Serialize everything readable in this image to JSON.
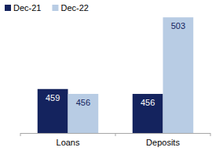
{
  "chart_data": {
    "type": "bar",
    "categories": [
      "Loans",
      "Deposits"
    ],
    "series": [
      {
        "name": "Dec-21",
        "color": "#14235e",
        "values": [
          459,
          456
        ]
      },
      {
        "name": "Dec-22",
        "color": "#b8cce4",
        "values": [
          456,
          503
        ]
      }
    ],
    "ylim": [
      432,
      505
    ],
    "data_labels": true,
    "tick_labels": "x",
    "legend": "top-left"
  }
}
